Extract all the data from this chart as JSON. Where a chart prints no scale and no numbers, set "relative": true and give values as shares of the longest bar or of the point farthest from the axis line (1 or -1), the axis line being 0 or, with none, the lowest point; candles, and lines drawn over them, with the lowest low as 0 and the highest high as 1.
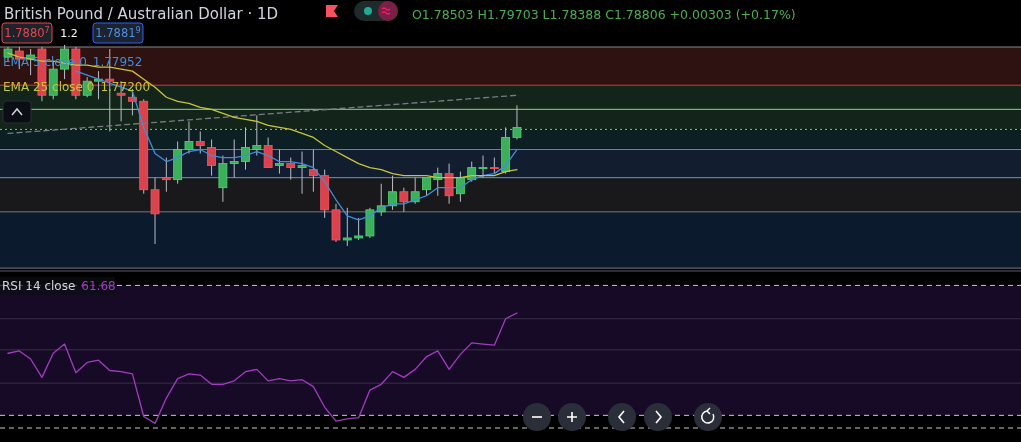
{
  "chart_data": [
    {
      "type": "candlestick",
      "title": "British Pound / Australian Dollar · 1D",
      "relative": true,
      "legend": "top left",
      "categories": [
        null,
        null,
        null,
        null,
        null,
        null,
        null,
        null,
        null,
        null,
        null,
        null,
        null,
        null,
        null,
        null,
        null,
        null,
        null,
        null,
        null,
        null,
        null,
        null,
        null,
        null,
        null,
        null,
        null,
        null,
        null,
        null,
        null,
        null,
        null,
        null,
        null,
        null,
        null,
        null,
        null,
        null,
        null,
        null,
        null,
        null
      ],
      "annotations": [
        "O1.78503 H1.79703 L1.78388 C1.78806 +0.00303 (+0.17%)",
        "1.7880$^{7}$",
        "1.2",
        "1.7881$^{9}$",
        "1.77952",
        "1.77200"
      ],
      "bands": [
        {
          "axis": "y",
          "from": 0.8,
          "to": 0.99,
          "color": "#2e1111"
        },
        {
          "axis": "y",
          "from": 0.58,
          "to": 0.8,
          "color": "#13251a"
        },
        {
          "axis": "y",
          "from": 0.48,
          "to": 0.58,
          "color": "#0c2024"
        },
        {
          "axis": "y",
          "from": 0.34,
          "to": 0.48,
          "color": "#131d30"
        },
        {
          "axis": "y",
          "from": 0.17,
          "to": 0.34,
          "color": "#19191c"
        },
        {
          "axis": "y",
          "from": -0.11,
          "to": 0.17,
          "color": "#0c1a2e"
        }
      ],
      "ref_lines": [
        {
          "axis": "y",
          "value": 0.99,
          "color": "#8a8a8a"
        },
        {
          "axis": "y",
          "value": 0.8,
          "color": "#d8402f"
        },
        {
          "axis": "y",
          "value": 0.68,
          "color": "#8fd18f"
        },
        {
          "axis": "y",
          "value": 0.58,
          "color": "#7cc87c",
          "line_style": "dotted"
        },
        {
          "axis": "y",
          "value": 0.48,
          "color": "#26a69a"
        },
        {
          "axis": "y",
          "value": 0.34,
          "color": "#5b9bd5"
        },
        {
          "axis": "y",
          "value": 0.17,
          "color": "#7a7a7a"
        },
        {
          "axis": "y",
          "value": -0.11,
          "color": "#7a7a7a"
        }
      ],
      "ohlc": [
        [
          0.94,
          0.99,
          0.92,
          0.98
        ],
        [
          0.97,
          0.99,
          0.88,
          0.93
        ],
        [
          0.93,
          0.98,
          0.85,
          0.95
        ],
        [
          0.98,
          0.99,
          0.72,
          0.75
        ],
        [
          0.75,
          0.92,
          0.73,
          0.88
        ],
        [
          0.88,
          1.0,
          0.83,
          0.98
        ],
        [
          0.98,
          0.99,
          0.73,
          0.75
        ],
        [
          0.75,
          0.84,
          0.74,
          0.82
        ],
        [
          0.82,
          0.87,
          0.73,
          0.83
        ],
        [
          0.83,
          0.98,
          0.57,
          0.82
        ],
        [
          0.76,
          0.82,
          0.62,
          0.75
        ],
        [
          0.74,
          0.78,
          0.65,
          0.72
        ],
        [
          0.72,
          0.73,
          0.26,
          0.28
        ],
        [
          0.28,
          0.34,
          0.01,
          0.16
        ],
        [
          0.34,
          0.44,
          0.27,
          0.33
        ],
        [
          0.33,
          0.52,
          0.31,
          0.48
        ],
        [
          0.48,
          0.62,
          0.46,
          0.52
        ],
        [
          0.52,
          0.57,
          0.46,
          0.5
        ],
        [
          0.49,
          0.53,
          0.35,
          0.4
        ],
        [
          0.29,
          0.45,
          0.22,
          0.41
        ],
        [
          0.41,
          0.53,
          0.34,
          0.42
        ],
        [
          0.42,
          0.59,
          0.38,
          0.49
        ],
        [
          0.48,
          0.65,
          0.45,
          0.5
        ],
        [
          0.5,
          0.54,
          0.39,
          0.39
        ],
        [
          0.4,
          0.48,
          0.36,
          0.41
        ],
        [
          0.41,
          0.44,
          0.33,
          0.39
        ],
        [
          0.39,
          0.47,
          0.26,
          0.4
        ],
        [
          0.38,
          0.48,
          0.27,
          0.35
        ],
        [
          0.35,
          0.38,
          0.14,
          0.18
        ],
        [
          0.18,
          0.21,
          0.02,
          0.03
        ],
        [
          0.03,
          0.19,
          0.0,
          0.04
        ],
        [
          0.04,
          0.14,
          0.03,
          0.05
        ],
        [
          0.05,
          0.19,
          0.04,
          0.18
        ],
        [
          0.17,
          0.31,
          0.15,
          0.2
        ],
        [
          0.2,
          0.35,
          0.18,
          0.27
        ],
        [
          0.27,
          0.29,
          0.17,
          0.22
        ],
        [
          0.22,
          0.34,
          0.21,
          0.27
        ],
        [
          0.28,
          0.34,
          0.25,
          0.34
        ],
        [
          0.33,
          0.39,
          0.25,
          0.36
        ],
        [
          0.36,
          0.41,
          0.21,
          0.25
        ],
        [
          0.26,
          0.37,
          0.22,
          0.34
        ],
        [
          0.33,
          0.42,
          0.32,
          0.39
        ],
        [
          0.39,
          0.45,
          0.34,
          0.39
        ],
        [
          0.39,
          0.44,
          0.36,
          0.39
        ],
        [
          0.37,
          0.59,
          0.36,
          0.54
        ],
        [
          0.54,
          0.7,
          0.53,
          0.59
        ]
      ],
      "colors": [
        "#3dae5b",
        "#d9434d",
        "#3dae5b",
        "#d9434d",
        "#3dae5b",
        "#3dae5b",
        "#d9434d",
        "#3dae5b",
        "#3dae5b",
        "#d9434d",
        "#d9434d",
        "#d9434d",
        "#d9434d",
        "#d9434d",
        "#d9434d",
        "#3dae5b",
        "#3dae5b",
        "#d9434d",
        "#d9434d",
        "#3dae5b",
        "#3dae5b",
        "#3dae5b",
        "#3dae5b",
        "#d9434d",
        "#3dae5b",
        "#d9434d",
        "#3dae5b",
        "#d9434d",
        "#d9434d",
        "#d9434d",
        "#3dae5b",
        "#3dae5b",
        "#3dae5b",
        "#3dae5b",
        "#3dae5b",
        "#d9434d",
        "#3dae5b",
        "#3dae5b",
        "#3dae5b",
        "#d9434d",
        "#3dae5b",
        "#3dae5b",
        "#3dae5b",
        "#d9434d",
        "#3dae5b",
        "#3dae5b"
      ],
      "series": [
        {
          "type": "line",
          "color": "#787b86",
          "line_style": "dashed",
          "values": [
            0.56,
            null,
            null,
            null,
            null,
            null,
            null,
            null,
            null,
            null,
            null,
            null,
            null,
            null,
            null,
            null,
            null,
            null,
            null,
            null,
            null,
            null,
            null,
            null,
            null,
            null,
            null,
            null,
            null,
            null,
            null,
            null,
            null,
            null,
            null,
            null,
            null,
            null,
            null,
            null,
            null,
            null,
            null,
            null,
            null,
            0.75
          ]
        },
        {
          "type": "line",
          "name": "EMA 5 close 0",
          "color": "#3d8fd9",
          "values": [
            null,
            null,
            null,
            null,
            null,
            null,
            0.87,
            0.85,
            0.83,
            0.81,
            0.79,
            0.77,
            0.59,
            0.46,
            0.42,
            0.44,
            0.47,
            0.48,
            0.45,
            0.44,
            0.44,
            0.45,
            0.47,
            0.45,
            0.42,
            0.42,
            0.41,
            0.39,
            0.32,
            0.23,
            0.15,
            0.13,
            0.15,
            0.19,
            0.21,
            0.21,
            0.23,
            0.25,
            0.29,
            0.29,
            0.29,
            0.33,
            0.35,
            0.36,
            0.4,
            0.48
          ]
        },
        {
          "type": "line",
          "name": "EMA 25 close 0",
          "color": "#c8c43a",
          "values": [
            0.96,
            0.94,
            0.93,
            0.92,
            0.92,
            0.91,
            0.9,
            0.9,
            0.89,
            0.89,
            0.88,
            0.87,
            0.83,
            0.79,
            0.74,
            0.72,
            0.71,
            0.69,
            0.68,
            0.66,
            0.64,
            0.63,
            0.62,
            0.6,
            0.59,
            0.58,
            0.56,
            0.54,
            0.5,
            0.47,
            0.44,
            0.41,
            0.39,
            0.38,
            0.36,
            0.35,
            0.35,
            0.35,
            0.34,
            0.34,
            0.34,
            0.35,
            0.35,
            0.35,
            0.37,
            0.38
          ]
        }
      ]
    },
    {
      "type": "line",
      "title": "RSI 14 close",
      "relative": true,
      "categories": [
        null,
        null,
        null,
        null,
        null,
        null,
        null,
        null,
        null,
        null,
        null,
        null,
        null,
        null,
        null,
        null,
        null,
        null,
        null,
        null,
        null,
        null,
        null,
        null,
        null,
        null,
        null,
        null,
        null,
        null,
        null,
        null,
        null,
        null,
        null,
        null,
        null,
        null,
        null,
        null,
        null,
        null,
        null,
        null,
        null,
        null
      ],
      "annotations": [
        "61.68"
      ],
      "bands": [
        {
          "axis": "y",
          "from": 0.11,
          "to": 1.24,
          "color": "#170a26"
        }
      ],
      "ref_lines": [
        {
          "axis": "y",
          "value": 1.24,
          "color": "#c8c8c8",
          "line_style": "dashed"
        },
        {
          "axis": "y",
          "value": 0.95,
          "color": "#3a2f4a"
        },
        {
          "axis": "y",
          "value": 0.68,
          "color": "#3a2f4a"
        },
        {
          "axis": "y",
          "value": 0.39,
          "color": "#3a2f4a"
        },
        {
          "axis": "y",
          "value": 0.11,
          "color": "#c8c8c8",
          "line_style": "dashed"
        },
        {
          "axis": "y",
          "value": 0,
          "color": "#c8c8c8",
          "line_style": "dashed"
        }
      ],
      "series": [
        {
          "type": "line",
          "color": "#a23bbf",
          "values": [
            0.65,
            0.67,
            0.6,
            0.44,
            0.65,
            0.73,
            0.48,
            0.57,
            0.59,
            0.5,
            0.49,
            0.47,
            0.1,
            0.04,
            0.26,
            0.43,
            0.47,
            0.46,
            0.38,
            0.38,
            0.41,
            0.49,
            0.51,
            0.41,
            0.43,
            0.41,
            0.42,
            0.36,
            0.18,
            0.06,
            0.08,
            0.09,
            0.33,
            0.38,
            0.49,
            0.44,
            0.51,
            0.62,
            0.67,
            0.51,
            0.64,
            0.74,
            0.73,
            0.72,
            0.95,
            1.0
          ]
        }
      ]
    }
  ]
}
